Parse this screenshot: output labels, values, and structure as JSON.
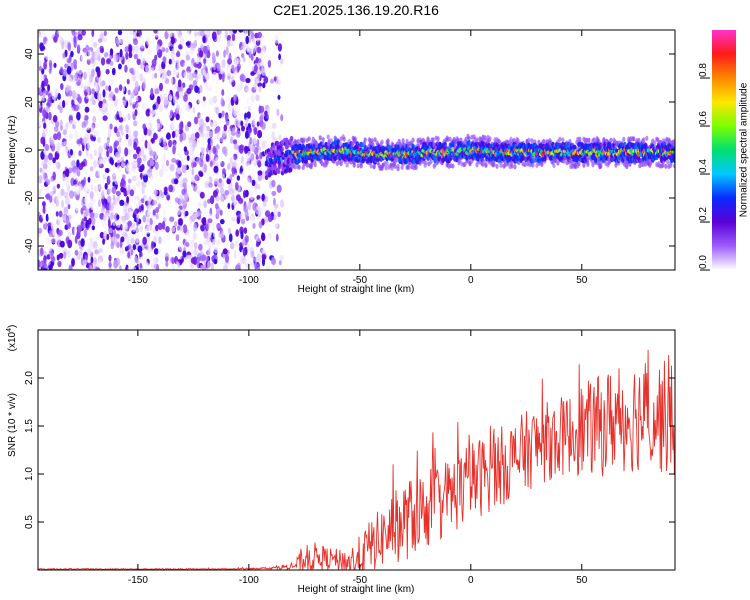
{
  "title": "C2E1.2025.136.19.20.R16",
  "colors": {
    "snr_line": "#e8302a",
    "spectrogram_cmap": [
      "#ffffff",
      "#9d5cff",
      "#5a00d6",
      "#0a2aff",
      "#00c8ff",
      "#00e070",
      "#7cff00",
      "#ffe600",
      "#ff8800",
      "#ff1a1a",
      "#ff33cc"
    ]
  },
  "chart_data": [
    {
      "type": "heatmap",
      "xlabel": "Height of straight line (km)",
      "ylabel": "Frequency (Hz)",
      "xlim": [
        -195,
        92
      ],
      "ylim": [
        -50,
        50
      ],
      "xticks": [
        -150,
        -100,
        -50,
        0,
        50
      ],
      "yticks": [
        -40,
        -20,
        0,
        20,
        40
      ],
      "grid": false,
      "colorbar": {
        "label": "Normalized spectral amplitude",
        "range": [
          0.0,
          1.0
        ],
        "ticks": [
          "0.0",
          "0.2",
          "0.4",
          "0.6",
          "0.8"
        ]
      },
      "regions": [
        {
          "name": "noise",
          "x_range": [
            -195,
            -85
          ],
          "freq_range": [
            -50,
            50
          ],
          "amplitude_range": [
            0.0,
            0.25
          ]
        },
        {
          "name": "signal_onset",
          "x_range": [
            -92,
            -80
          ],
          "freq_range": [
            -12,
            2
          ],
          "amplitude_range": [
            0.2,
            0.4
          ]
        },
        {
          "name": "signal_band",
          "x_range": [
            -80,
            92
          ],
          "freq_range": [
            -4,
            3
          ],
          "amplitude_range": [
            0.3,
            0.95
          ]
        }
      ],
      "signal_center_freq_hz": [
        [
          -92,
          -8
        ],
        [
          -85,
          -4
        ],
        [
          -80,
          -2
        ],
        [
          -70,
          -1
        ],
        [
          -60,
          0
        ],
        [
          -50,
          -1
        ],
        [
          -40,
          -2
        ],
        [
          -30,
          -2
        ],
        [
          -20,
          -1
        ],
        [
          -10,
          -1
        ],
        [
          0,
          0
        ],
        [
          10,
          -1
        ],
        [
          20,
          -1
        ],
        [
          30,
          -1
        ],
        [
          40,
          -1
        ],
        [
          50,
          -1
        ],
        [
          60,
          -1
        ],
        [
          70,
          -1
        ],
        [
          80,
          -1
        ],
        [
          92,
          -1
        ]
      ]
    },
    {
      "type": "line",
      "xlabel": "Height of straight line (km)",
      "ylabel": "SNR (10 * v/v)",
      "y_multiplier": "(x10",
      "y_multiplier_exp": "4",
      "y_multiplier_close": ")",
      "xlim": [
        -195,
        92
      ],
      "ylim": [
        0,
        2.5
      ],
      "xticks": [
        -150,
        -100,
        -50,
        0,
        50
      ],
      "yticks": [
        0.5,
        1.0,
        1.5,
        2.0
      ],
      "ytick_labels": [
        "0.5",
        "1.0",
        "1.5",
        "2.0"
      ],
      "grid": false,
      "series": [
        {
          "x": [
            -195,
            -170,
            -140,
            -110,
            -90,
            -80,
            -75,
            -70,
            -65,
            -60,
            -55,
            -50,
            -45,
            -40,
            -35,
            -30,
            -25,
            -20,
            -15,
            -10,
            -5,
            0,
            5,
            10,
            15,
            20,
            25,
            30,
            35,
            40,
            45,
            50,
            55,
            60,
            65,
            70,
            75,
            80,
            85,
            92
          ],
          "values": [
            0.01,
            0.01,
            0.01,
            0.01,
            0.02,
            0.04,
            0.1,
            0.14,
            0.12,
            0.1,
            0.08,
            0.14,
            0.26,
            0.34,
            0.44,
            0.5,
            0.58,
            0.64,
            0.7,
            0.76,
            0.84,
            0.92,
            0.98,
            1.04,
            1.1,
            1.16,
            1.24,
            1.3,
            1.34,
            1.38,
            1.42,
            1.46,
            1.48,
            1.52,
            1.58,
            1.6,
            1.62,
            1.64,
            1.6,
            1.56
          ],
          "spread": [
            0.005,
            0.005,
            0.005,
            0.005,
            0.01,
            0.04,
            0.15,
            0.15,
            0.12,
            0.12,
            0.15,
            0.22,
            0.28,
            0.32,
            0.38,
            0.42,
            0.42,
            0.42,
            0.42,
            0.42,
            0.42,
            0.42,
            0.42,
            0.42,
            0.42,
            0.42,
            0.42,
            0.42,
            0.42,
            0.42,
            0.42,
            0.5,
            0.5,
            0.55,
            0.55,
            0.6,
            0.6,
            0.6,
            0.6,
            0.6
          ]
        }
      ]
    }
  ],
  "axis_text": {
    "heatmap_xlabel": "Height of straight line (km)",
    "heatmap_ylabel": "Frequency (Hz)",
    "snr_xlabel": "Height of straight line (km)",
    "snr_ylabel": "SNR (10 * v/v)",
    "colorbar_label": "Normalized spectral amplitude"
  }
}
